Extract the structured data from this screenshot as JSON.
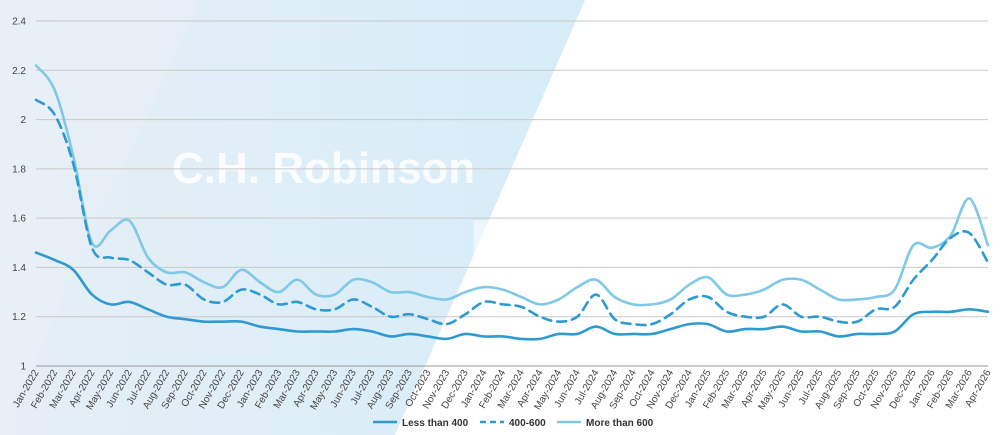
{
  "chart_data": {
    "type": "line",
    "title": "",
    "xlabel": "",
    "ylabel": "",
    "ylim": [
      1,
      2.4
    ],
    "yticks": [
      "1",
      "1.2",
      "1.4",
      "1.6",
      "1.8",
      "2",
      "2.2",
      "2.4"
    ],
    "grid": true,
    "legend": "bottom-center",
    "watermark": {
      "line1": "C.H. Robinson",
      "line2": "Edge"
    },
    "x": [
      "Jan-2022",
      "Feb-2022",
      "Mar-2022",
      "Apr-2022",
      "May-2022",
      "Jun-2022",
      "Jul-2022",
      "Aug-2022",
      "Sep-2022",
      "Oct-2022",
      "Nov-2022",
      "Dec-2022",
      "Jan-2023",
      "Feb-2023",
      "Mar-2023",
      "Apr-2023",
      "May-2023",
      "Jun-2023",
      "Jul-2023",
      "Aug-2023",
      "Sep-2023",
      "Oct-2023",
      "Nov-2023",
      "Dec-2023",
      "Jan-2024",
      "Feb-2024",
      "Mar-2024",
      "Apr-2024",
      "May-2024",
      "Jun-2024",
      "Jul-2024",
      "Aug-2024",
      "Sep-2024",
      "Oct-2024",
      "Nov-2024",
      "Dec-2024",
      "Jan-2025",
      "Feb-2025",
      "Mar-2025",
      "Apr-2025",
      "May-2025",
      "Jun-2025",
      "Jul-2025",
      "Aug-2025",
      "Sep-2025",
      "Oct-2025",
      "Nov-2025",
      "Dec-2025",
      "Jan-2026",
      "Feb-2026",
      "Mar-2026",
      "Apr-2026"
    ],
    "series": [
      {
        "name": "Less than 400",
        "color": "#2e9ad0",
        "style": "solid",
        "values": [
          1.46,
          1.43,
          1.39,
          1.29,
          1.25,
          1.26,
          1.23,
          1.2,
          1.19,
          1.18,
          1.18,
          1.18,
          1.16,
          1.15,
          1.14,
          1.14,
          1.14,
          1.15,
          1.14,
          1.12,
          1.13,
          1.12,
          1.11,
          1.13,
          1.12,
          1.12,
          1.11,
          1.11,
          1.13,
          1.13,
          1.16,
          1.13,
          1.13,
          1.13,
          1.15,
          1.17,
          1.17,
          1.14,
          1.15,
          1.15,
          1.16,
          1.14,
          1.14,
          1.12,
          1.13,
          1.13,
          1.14,
          1.21,
          1.22,
          1.22,
          1.23,
          1.22
        ]
      },
      {
        "name": "400-600",
        "color": "#2e9ad0",
        "style": "dashed",
        "values": [
          2.08,
          2.02,
          1.82,
          1.48,
          1.44,
          1.43,
          1.38,
          1.33,
          1.33,
          1.27,
          1.26,
          1.31,
          1.29,
          1.25,
          1.26,
          1.23,
          1.23,
          1.27,
          1.24,
          1.2,
          1.21,
          1.19,
          1.17,
          1.21,
          1.26,
          1.25,
          1.24,
          1.2,
          1.18,
          1.2,
          1.29,
          1.19,
          1.17,
          1.17,
          1.21,
          1.27,
          1.28,
          1.22,
          1.2,
          1.2,
          1.25,
          1.2,
          1.2,
          1.18,
          1.18,
          1.23,
          1.24,
          1.35,
          1.43,
          1.52,
          1.54,
          1.42
        ]
      },
      {
        "name": "More than 600",
        "color": "#7fc8e6",
        "style": "solid",
        "values": [
          2.22,
          2.12,
          1.85,
          1.5,
          1.55,
          1.59,
          1.44,
          1.38,
          1.38,
          1.34,
          1.32,
          1.39,
          1.34,
          1.3,
          1.35,
          1.29,
          1.29,
          1.35,
          1.34,
          1.3,
          1.3,
          1.28,
          1.27,
          1.3,
          1.32,
          1.31,
          1.28,
          1.25,
          1.27,
          1.32,
          1.35,
          1.28,
          1.25,
          1.25,
          1.27,
          1.33,
          1.36,
          1.29,
          1.29,
          1.31,
          1.35,
          1.35,
          1.31,
          1.27,
          1.27,
          1.28,
          1.31,
          1.49,
          1.48,
          1.53,
          1.68,
          1.49
        ]
      }
    ]
  }
}
